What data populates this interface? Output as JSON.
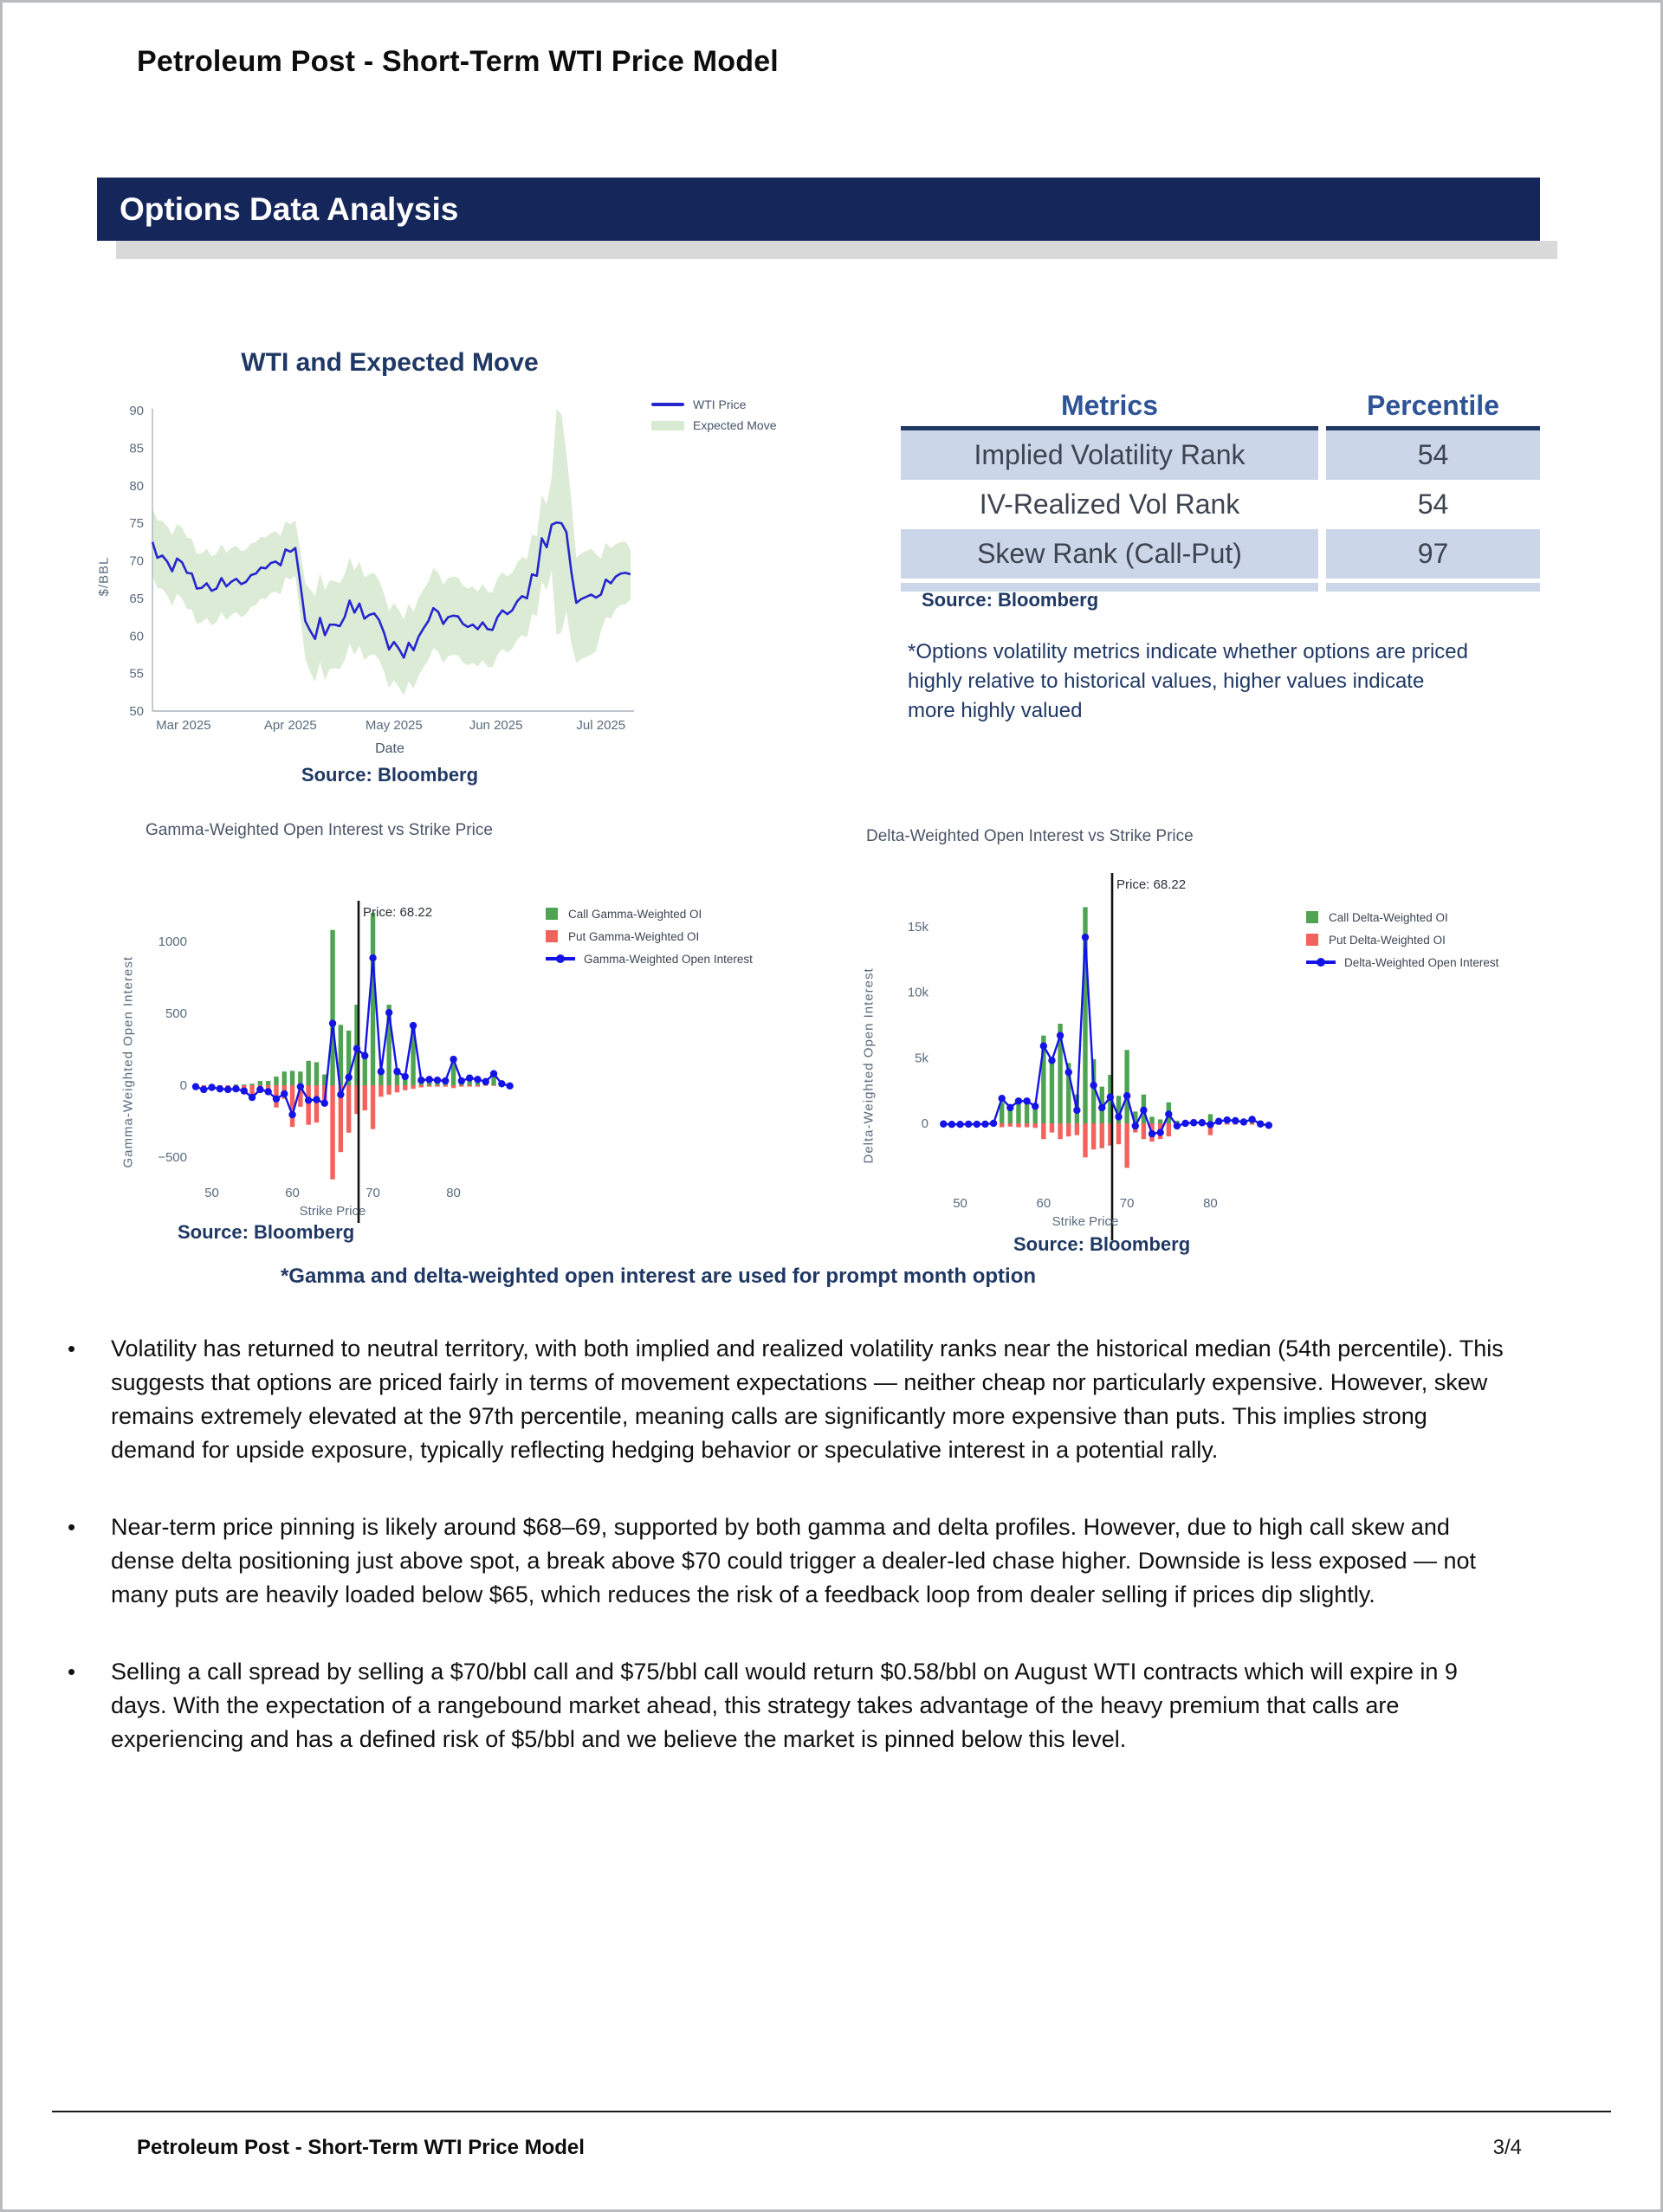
{
  "colors": {
    "banner_bg": "#15265B",
    "navy": "#1F3864",
    "wti_blue": "#2626CF",
    "band_green": "#D9EAD3",
    "call_green": "#4FA453",
    "put_red": "#F4625D",
    "oi_blue": "#1414E6",
    "row_bg": "#CCD6E9"
  },
  "page": {
    "title": "Petroleum Post - Short-Term WTI Price Model",
    "footer_title": "Petroleum Post - Short-Term WTI Price Model",
    "page_num": "3/4"
  },
  "banner": {
    "label": "Options Data Analysis"
  },
  "metrics_table": {
    "headers": [
      "Metrics",
      "Percentile"
    ],
    "rows": [
      [
        "Implied Volatility Rank",
        "54"
      ],
      [
        "IV-Realized Vol Rank",
        "54"
      ],
      [
        "Skew Rank (Call-Put)",
        "97"
      ]
    ],
    "source": "Source: Bloomberg",
    "note": "*Options volatility metrics indicate whether options are priced highly relative to historical values, higher values indicate more highly valued"
  },
  "captions": {
    "oi_footnote": "*Gamma and delta-weighted open interest are used for prompt month option"
  },
  "bullets": [
    "Volatility has returned to neutral territory, with both implied and realized volatility ranks near the historical median (54th percentile). This suggests that options are priced fairly in terms of movement expectations — neither cheap nor particularly expensive. However, skew remains extremely elevated at the 97th percentile, meaning calls are significantly more expensive than puts. This implies strong demand for upside exposure, typically reflecting hedging behavior or speculative interest in a potential rally.",
    "Near-term price pinning is likely around $68–69, supported by both gamma and delta profiles. However, due to high call skew and dense delta positioning just above spot, a break above $70 could trigger a dealer-led chase higher. Downside is less exposed — not many puts are heavily loaded below $65, which reduces the risk of a feedback loop from dealer selling if prices dip slightly.",
    "Selling a call spread by selling a $70/bbl call and $75/bbl call would return $0.58/bbl on August WTI contracts which will expire in 9 days. With the expectation of a rangebound market ahead, this strategy takes advantage of the heavy premium that calls are experiencing and has a defined risk of $5/bbl and we believe the market is pinned below this level."
  ],
  "chart_data": [
    {
      "type": "line",
      "title": "WTI and Expected Move",
      "xlabel": "Date",
      "ylabel": "$/BBL",
      "source": "Source: Bloomberg",
      "legend": [
        "WTI Price",
        "Expected Move"
      ],
      "ylim": [
        50,
        92
      ],
      "yticks": [
        50,
        55,
        60,
        65,
        70,
        75,
        80,
        85,
        90
      ],
      "xtick_labels": [
        "Mar 2025",
        "Apr 2025",
        "May 2025",
        "Jun 2025",
        "Jul 2025"
      ],
      "xtick_pos": [
        6.3,
        28,
        49,
        69.7,
        91
      ],
      "wti": [
        72.5,
        70.4,
        70.7,
        69.9,
        68.6,
        70.3,
        69.8,
        68.4,
        68.3,
        66.3,
        66.4,
        67.0,
        66.0,
        66.3,
        67.7,
        66.6,
        67.2,
        67.6,
        66.9,
        67.2,
        68.1,
        68.3,
        69.1,
        69.0,
        69.7,
        69.9,
        69.4,
        71.5,
        71.2,
        71.7,
        67.0,
        62.0,
        60.7,
        59.6,
        62.4,
        60.1,
        61.5,
        61.5,
        61.3,
        62.5,
        64.7,
        63.1,
        64.3,
        62.3,
        62.8,
        63.0,
        62.1,
        60.4,
        58.2,
        59.2,
        58.3,
        57.1,
        59.1,
        58.1,
        59.9,
        61.0,
        62.0,
        63.7,
        63.2,
        61.6,
        62.5,
        62.7,
        62.6,
        61.6,
        61.2,
        61.5,
        60.9,
        61.8,
        60.9,
        60.8,
        62.5,
        63.4,
        62.9,
        63.4,
        64.6,
        65.3,
        65.0,
        68.2,
        68.0,
        73.0,
        71.8,
        74.8,
        75.1,
        75.0,
        73.8,
        68.5,
        64.4,
        64.9,
        65.2,
        65.5,
        65.1,
        65.5,
        67.5,
        67.0,
        67.9,
        68.3,
        68.4,
        68.2
      ],
      "em_upper": [
        77.0,
        75.4,
        75.3,
        74.6,
        73.4,
        74.9,
        74.4,
        73.1,
        72.9,
        70.9,
        71.0,
        71.6,
        70.6,
        70.9,
        72.2,
        71.1,
        71.7,
        72.0,
        71.3,
        71.5,
        72.3,
        72.5,
        73.2,
        73.1,
        73.7,
        73.9,
        73.3,
        75.2,
        74.9,
        75.4,
        71.3,
        67.0,
        66.2,
        65.3,
        68.3,
        66.1,
        67.4,
        67.3,
        67.0,
        68.2,
        70.4,
        68.7,
        69.9,
        67.8,
        68.2,
        68.4,
        67.3,
        65.6,
        63.3,
        64.4,
        63.4,
        62.2,
        64.3,
        63.2,
        65.1,
        66.2,
        67.2,
        69.0,
        68.4,
        66.8,
        67.7,
        67.9,
        67.8,
        66.7,
        66.3,
        66.6,
        65.9,
        66.9,
        65.9,
        65.8,
        67.6,
        68.5,
        67.9,
        68.4,
        69.7,
        70.5,
        70.2,
        73.5,
        73.3,
        78.7,
        77.5,
        81.0,
        90.2,
        89.5,
        84.3,
        78.0,
        70.4,
        71.0,
        71.3,
        71.6,
        70.9,
        70.3,
        72.4,
        71.7,
        72.2,
        72.5,
        72.6,
        71.5
      ],
      "em_lower": [
        68.0,
        66.4,
        66.3,
        65.4,
        64.0,
        65.6,
        65.0,
        63.6,
        63.5,
        61.6,
        61.8,
        62.4,
        61.4,
        61.8,
        63.2,
        62.1,
        62.8,
        63.2,
        62.5,
        62.9,
        63.9,
        64.1,
        65.0,
        64.9,
        65.7,
        65.9,
        65.5,
        67.8,
        67.5,
        68.0,
        62.7,
        57.0,
        55.2,
        53.9,
        56.5,
        54.1,
        55.6,
        55.7,
        55.6,
        56.8,
        59.0,
        57.5,
        58.7,
        56.8,
        57.4,
        57.6,
        56.8,
        55.2,
        53.1,
        54.1,
        53.2,
        52.1,
        53.9,
        53.0,
        54.7,
        55.8,
        56.8,
        58.4,
        57.9,
        56.4,
        57.3,
        57.5,
        57.4,
        56.5,
        56.1,
        56.4,
        55.9,
        56.8,
        55.9,
        55.8,
        57.5,
        58.3,
        57.8,
        58.3,
        59.5,
        60.1,
        59.8,
        62.9,
        62.7,
        67.3,
        66.1,
        68.7,
        60.1,
        60.5,
        63.3,
        59.0,
        56.4,
        56.9,
        57.2,
        57.5,
        58.0,
        60.6,
        62.5,
        62.3,
        63.6,
        64.1,
        64.2,
        64.9
      ]
    },
    {
      "type": "bar+line",
      "title": "Gamma-Weighted Open Interest vs Strike Price",
      "xlabel": "Strike Price",
      "ylabel": "Gamma-Weighted Open Interest",
      "source": "Source: Bloomberg",
      "legend": [
        "Call Gamma-Weighted OI",
        "Put Gamma-Weighted OI",
        "Gamma-Weighted Open Interest"
      ],
      "price": 68.22,
      "price_annotation": "Price: 68.22",
      "yticks": [
        -500,
        0,
        500,
        1000
      ],
      "ytick_labels": [
        "−500",
        "0",
        "500",
        "1000"
      ],
      "xticks": [
        50,
        60,
        70,
        80
      ],
      "strikes": [
        48,
        49,
        50,
        51,
        52,
        53,
        54,
        55,
        56,
        57,
        58,
        59,
        60,
        61,
        62,
        63,
        64,
        65,
        66,
        67,
        68,
        69,
        70,
        71,
        72,
        73,
        74,
        75,
        76,
        77,
        78,
        79,
        80,
        81,
        82,
        83,
        84,
        85,
        86,
        87
      ],
      "call": [
        0,
        0,
        0,
        0,
        0,
        5,
        5,
        10,
        30,
        30,
        60,
        95,
        100,
        95,
        170,
        160,
        75,
        1080,
        420,
        380,
        560,
        230,
        1200,
        120,
        560,
        120,
        70,
        430,
        40,
        45,
        40,
        35,
        185,
        30,
        55,
        45,
        30,
        90,
        15,
        5
      ],
      "put": [
        -15,
        -25,
        -20,
        -30,
        -30,
        -35,
        -40,
        -90,
        -45,
        -65,
        -155,
        -95,
        -290,
        -150,
        -275,
        -260,
        -135,
        -655,
        -465,
        -330,
        -200,
        -175,
        -305,
        -80,
        -65,
        -50,
        -35,
        -25,
        -15,
        -10,
        -10,
        -10,
        -20,
        -10,
        -10,
        -10,
        -5,
        -5,
        -5,
        -5
      ],
      "net": [
        -10,
        -30,
        -15,
        -25,
        -30,
        -25,
        -40,
        -85,
        -30,
        -45,
        -95,
        -60,
        -205,
        -10,
        -105,
        -100,
        -125,
        430,
        -65,
        55,
        255,
        205,
        885,
        95,
        505,
        95,
        60,
        415,
        35,
        40,
        35,
        30,
        180,
        30,
        50,
        40,
        25,
        80,
        10,
        -5
      ]
    },
    {
      "type": "bar+line",
      "title": "Delta-Weighted Open Interest vs Strike Price",
      "xlabel": "Strike Price",
      "ylabel": "Delta-Weighted Open Interest",
      "source": "Source: Bloomberg",
      "legend": [
        "Call Delta-Weighted OI",
        "Put Delta-Weighted OI",
        "Delta-Weighted Open Interest"
      ],
      "price": 68.22,
      "price_annotation": "Price: 68.22",
      "yticks": [
        0,
        5000,
        10000,
        15000
      ],
      "ytick_labels": [
        "0",
        "5k",
        "10k",
        "15k"
      ],
      "xticks": [
        50,
        60,
        70,
        80
      ],
      "strikes": [
        48,
        49,
        50,
        51,
        52,
        53,
        54,
        55,
        56,
        57,
        58,
        59,
        60,
        61,
        62,
        63,
        64,
        65,
        66,
        67,
        68,
        69,
        70,
        71,
        72,
        73,
        74,
        75,
        76,
        77,
        78,
        79,
        80,
        81,
        82,
        83,
        84,
        85,
        86,
        87
      ],
      "call": [
        50,
        50,
        50,
        50,
        50,
        50,
        100,
        1600,
        1250,
        1500,
        1600,
        1300,
        6700,
        5000,
        7600,
        4600,
        2200,
        16500,
        4900,
        2800,
        3700,
        2100,
        5600,
        900,
        2200,
        500,
        300,
        1600,
        200,
        100,
        100,
        100,
        700,
        100,
        150,
        100,
        100,
        200,
        100,
        50
      ],
      "put": [
        -100,
        -100,
        -100,
        -100,
        -100,
        -100,
        -150,
        -300,
        -250,
        -300,
        -300,
        -350,
        -1200,
        -700,
        -1200,
        -1000,
        -900,
        -2600,
        -2000,
        -1900,
        -1700,
        -1600,
        -3400,
        -700,
        -1200,
        -1400,
        -1200,
        -1000,
        -400,
        -200,
        -200,
        -150,
        -900,
        -100,
        -100,
        -100,
        -100,
        -100,
        -50,
        -50
      ],
      "net": [
        -50,
        -80,
        -80,
        -60,
        -70,
        -60,
        0,
        1900,
        1200,
        1700,
        1700,
        1300,
        5900,
        4800,
        6700,
        3900,
        1000,
        14200,
        2900,
        1200,
        2000,
        500,
        2100,
        -200,
        1000,
        -800,
        -700,
        700,
        -200,
        0,
        50,
        50,
        -100,
        150,
        250,
        200,
        100,
        300,
        -50,
        -150
      ]
    }
  ]
}
